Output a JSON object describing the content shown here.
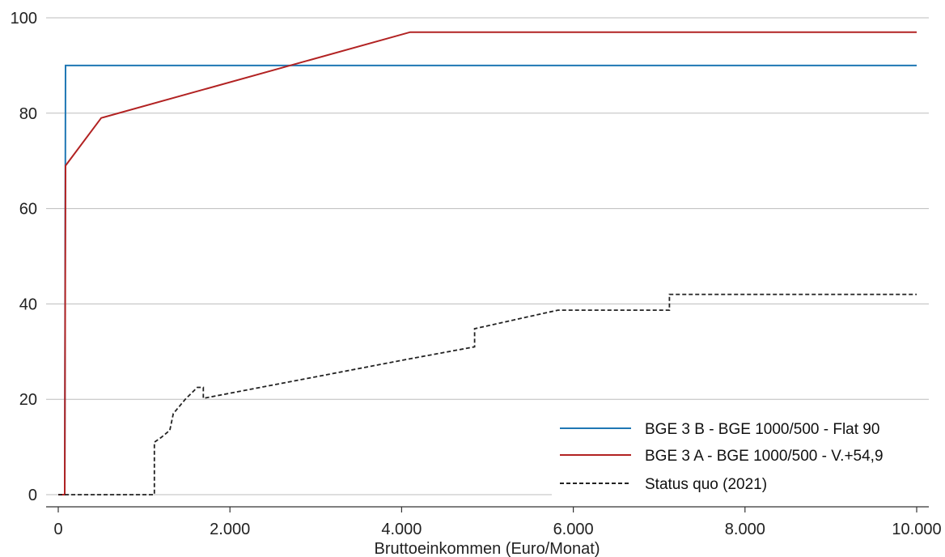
{
  "chart_data": {
    "type": "line",
    "xlabel": "Bruttoeinkommen (Euro/Monat)",
    "ylabel": "",
    "xlim": [
      0,
      10000
    ],
    "ylim": [
      0,
      100
    ],
    "x_ticks": [
      {
        "value": 0,
        "label": "0"
      },
      {
        "value": 2000,
        "label": "2.000"
      },
      {
        "value": 4000,
        "label": "4.000"
      },
      {
        "value": 6000,
        "label": "6.000"
      },
      {
        "value": 8000,
        "label": "8.000"
      },
      {
        "value": 10000,
        "label": "10.000"
      }
    ],
    "y_ticks": [
      {
        "value": 0,
        "label": "0"
      },
      {
        "value": 20,
        "label": "20"
      },
      {
        "value": 40,
        "label": "40"
      },
      {
        "value": 60,
        "label": "60"
      },
      {
        "value": 80,
        "label": "80"
      },
      {
        "value": 100,
        "label": "100"
      }
    ],
    "grid": "horizontal",
    "legend_position": "bottom-right",
    "series": [
      {
        "name": "BGE 3 B - BGE 1000/500 - Flat 90",
        "color": "#1f77b4",
        "style": "solid",
        "points": [
          [
            0,
            0
          ],
          [
            75,
            0
          ],
          [
            85,
            90
          ],
          [
            10000,
            90
          ]
        ]
      },
      {
        "name": "BGE 3 A - BGE 1000/500 - V.+54,9",
        "color": "#b22222",
        "style": "solid",
        "points": [
          [
            0,
            0
          ],
          [
            75,
            0
          ],
          [
            85,
            69
          ],
          [
            500,
            79
          ],
          [
            4100,
            97
          ],
          [
            10000,
            97
          ]
        ]
      },
      {
        "name": "Status quo (2021)",
        "color": "#222222",
        "style": "dashed",
        "points": [
          [
            0,
            0
          ],
          [
            1120,
            0
          ],
          [
            1120,
            11
          ],
          [
            1200,
            12
          ],
          [
            1300,
            13.5
          ],
          [
            1340,
            17
          ],
          [
            1480,
            20
          ],
          [
            1620,
            22.5
          ],
          [
            1690,
            22.5
          ],
          [
            1690,
            20.2
          ],
          [
            4100,
            28.5
          ],
          [
            4850,
            31
          ],
          [
            4850,
            34.8
          ],
          [
            5820,
            38.7
          ],
          [
            7120,
            38.7
          ],
          [
            7120,
            42
          ],
          [
            10000,
            42
          ]
        ]
      }
    ]
  }
}
